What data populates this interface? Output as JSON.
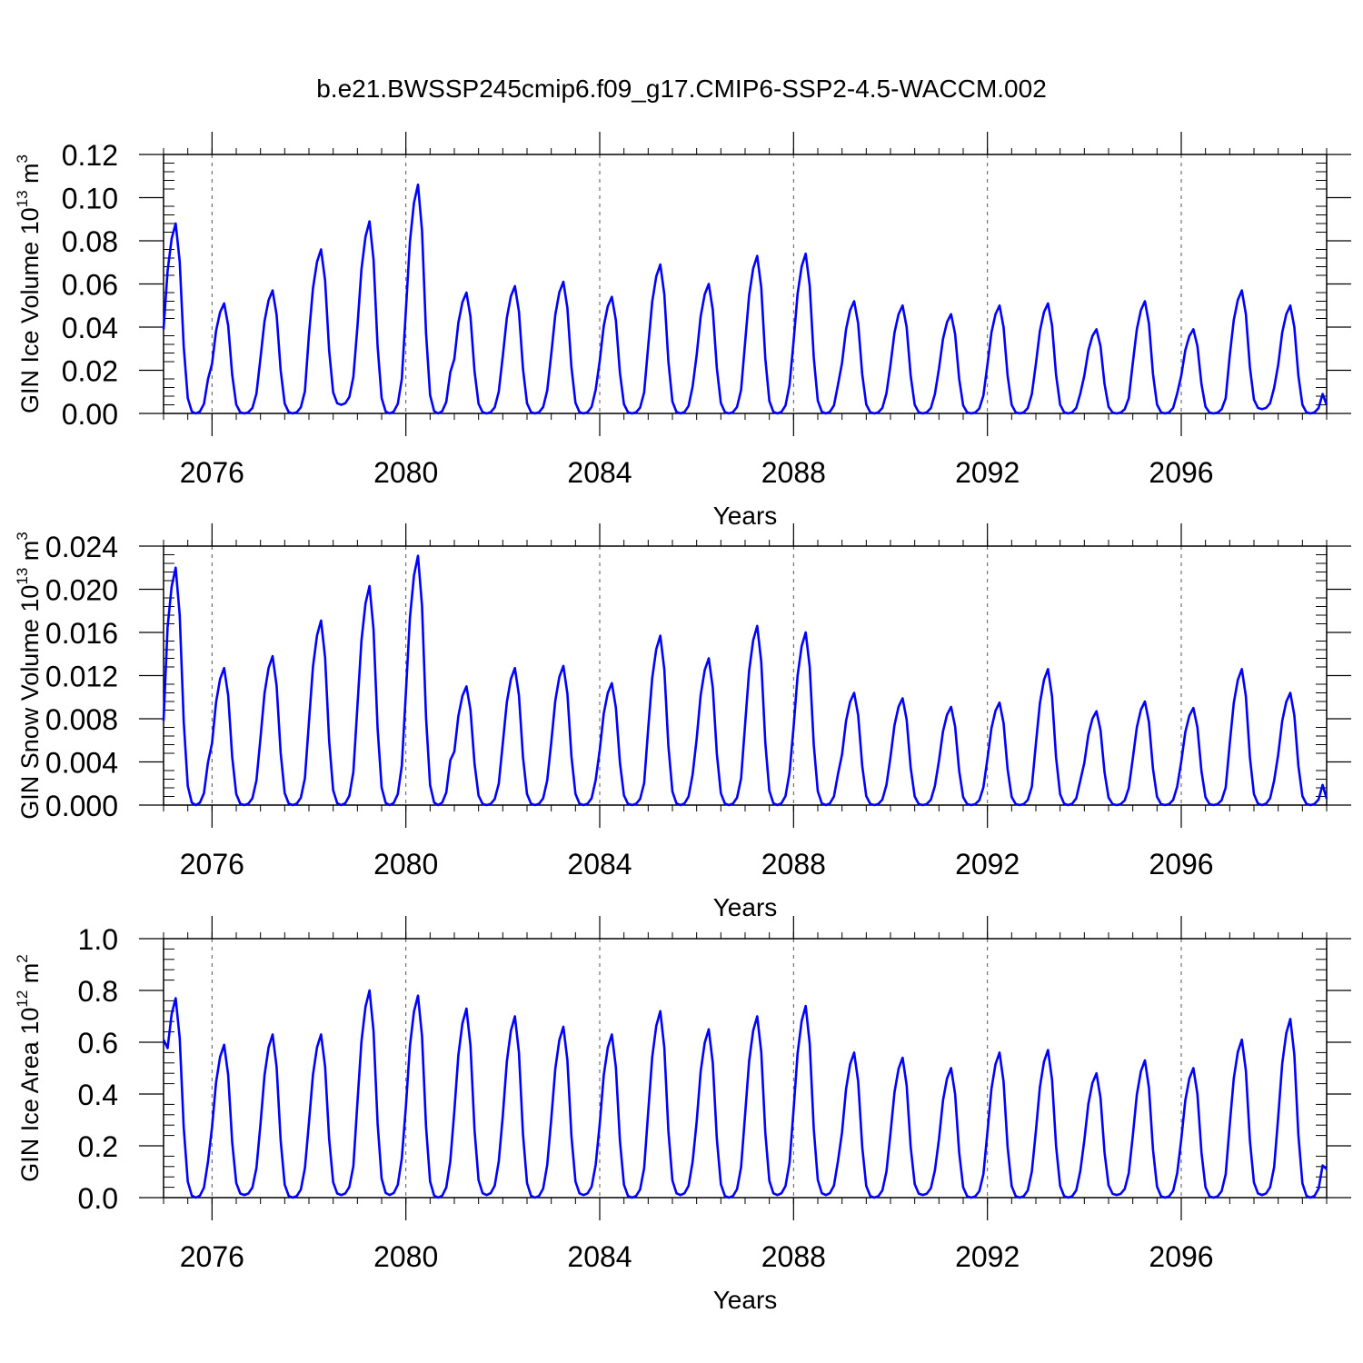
{
  "figure": {
    "title": "b.e21.BWSSP245cmip6.f09_g17.CMIP6-SSP2-4.5-WACCM.002"
  },
  "chart_data": [
    {
      "type": "line",
      "ylabel": "GIN Ice Volume 10",
      "ylabel_exp": "13",
      "ylabel_unit": " m",
      "ylabel_unit_exp": "3",
      "xlabel": "Years",
      "xlim": [
        2075.0,
        2099.0
      ],
      "ylim": [
        0.0,
        0.12
      ],
      "xticks": [
        "2076",
        "2080",
        "2084",
        "2088",
        "2092",
        "2096"
      ],
      "yticks": [
        "0.00",
        "0.02",
        "0.04",
        "0.06",
        "0.08",
        "0.10",
        "0.12"
      ],
      "series_color": "#0000ff",
      "annual_peaks": [
        0.088,
        0.051,
        0.057,
        0.076,
        0.089,
        0.106,
        0.056,
        0.059,
        0.061,
        0.054,
        0.069,
        0.06,
        0.073,
        0.074,
        0.052,
        0.05,
        0.046,
        0.05,
        0.051,
        0.039,
        0.052,
        0.039,
        0.057,
        0.05
      ],
      "annual_mins": [
        0.0,
        0.0,
        0.0,
        0.004,
        0.0,
        0.0,
        0.0,
        0.0,
        0.0,
        0.0,
        0.0,
        0.0,
        0.0,
        0.0,
        0.0,
        0.0,
        0.0,
        0.0,
        0.0,
        0.0,
        0.0,
        0.0,
        0.002,
        0.0
      ],
      "start_value": 0.039,
      "end_value": 0.004
    },
    {
      "type": "line",
      "ylabel": "GIN Snow Volume 10",
      "ylabel_exp": "13",
      "ylabel_unit": " m",
      "ylabel_unit_exp": "3",
      "xlabel": "Years",
      "xlim": [
        2075.0,
        2099.0
      ],
      "ylim": [
        0.0,
        0.024
      ],
      "xticks": [
        "2076",
        "2080",
        "2084",
        "2088",
        "2092",
        "2096"
      ],
      "yticks": [
        "0.000",
        "0.004",
        "0.008",
        "0.012",
        "0.016",
        "0.020",
        "0.024"
      ],
      "series_color": "#0000ff",
      "annual_peaks": [
        0.022,
        0.0127,
        0.0138,
        0.0171,
        0.0203,
        0.0231,
        0.011,
        0.0127,
        0.0129,
        0.0113,
        0.0157,
        0.0136,
        0.0166,
        0.016,
        0.0104,
        0.0099,
        0.0091,
        0.0095,
        0.0126,
        0.0087,
        0.0096,
        0.009,
        0.0126,
        0.0104
      ],
      "annual_mins": [
        0.0,
        0.0,
        0.0,
        0.0,
        0.0,
        0.0,
        0.0,
        0.0,
        0.0,
        0.0,
        0.0,
        0.0,
        0.0,
        0.0,
        0.0,
        0.0,
        0.0,
        0.0,
        0.0,
        0.0,
        0.0,
        0.0,
        0.0,
        0.0
      ],
      "start_value": 0.0078,
      "end_value": 0.0006
    },
    {
      "type": "line",
      "ylabel": "GIN Ice Area 10",
      "ylabel_exp": "12",
      "ylabel_unit": " m",
      "ylabel_unit_exp": "2",
      "xlabel": "Years",
      "xlim": [
        2075.0,
        2099.0
      ],
      "ylim": [
        0.0,
        1.0
      ],
      "xticks": [
        "2076",
        "2080",
        "2084",
        "2088",
        "2092",
        "2096"
      ],
      "yticks": [
        "0.0",
        "0.2",
        "0.4",
        "0.6",
        "0.8",
        "1.0"
      ],
      "series_color": "#0000ff",
      "annual_peaks": [
        0.77,
        0.59,
        0.63,
        0.63,
        0.8,
        0.78,
        0.73,
        0.7,
        0.66,
        0.63,
        0.72,
        0.65,
        0.7,
        0.74,
        0.56,
        0.54,
        0.5,
        0.56,
        0.57,
        0.48,
        0.53,
        0.5,
        0.61,
        0.69
      ],
      "annual_mins": [
        0.0,
        0.01,
        0.0,
        0.01,
        0.01,
        0.0,
        0.01,
        0.0,
        0.01,
        0.0,
        0.01,
        0.0,
        0.01,
        0.01,
        0.0,
        0.01,
        0.0,
        0.0,
        0.0,
        0.01,
        0.0,
        0.0,
        0.01,
        0.0
      ],
      "start_value": 0.61,
      "end_value": 0.11
    }
  ]
}
